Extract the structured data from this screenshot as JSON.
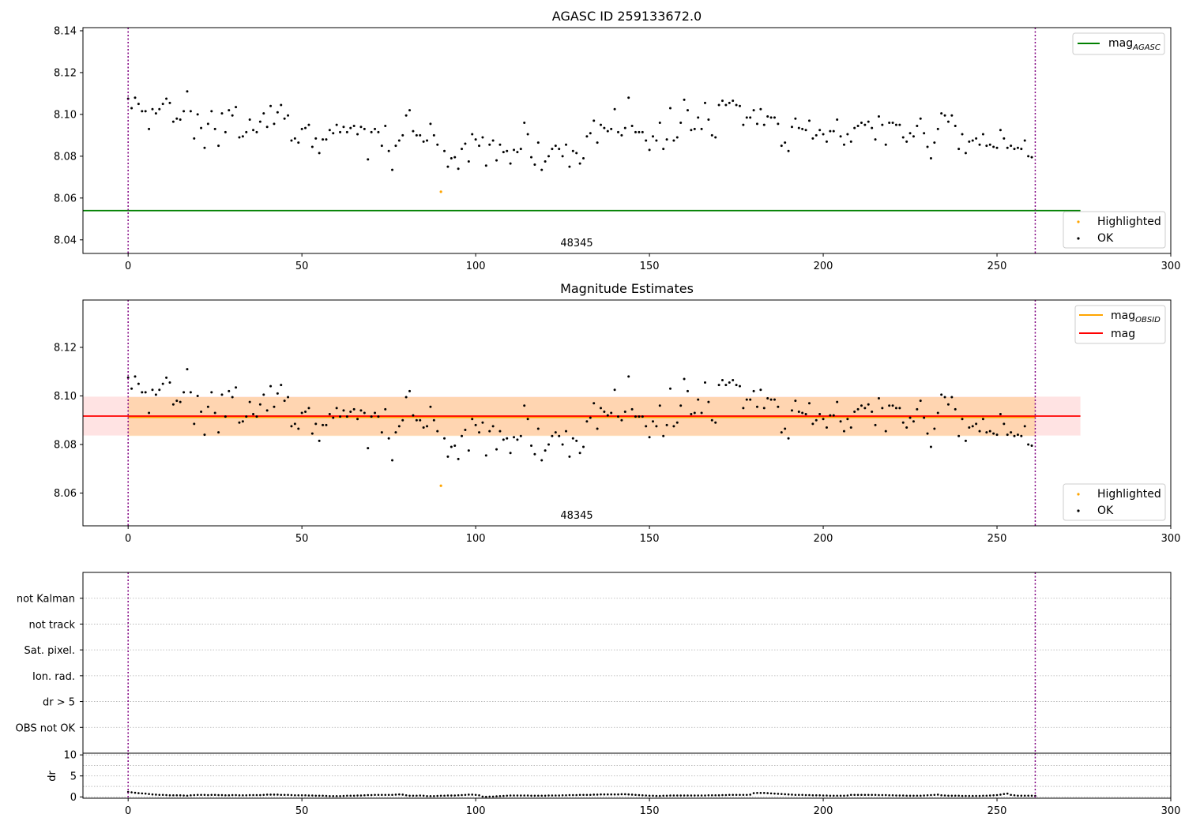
{
  "chart_data": [
    {
      "type": "scatter",
      "title": "AGASC ID 259133672.0",
      "xlabel": "",
      "ylabel": "",
      "xlim": [
        -13,
        300
      ],
      "ylim": [
        8.0335,
        8.1415
      ],
      "x_ticks": [
        "0",
        "50",
        "100",
        "150",
        "200",
        "250",
        "300"
      ],
      "y_ticks": [
        "8.04",
        "8.06",
        "8.08",
        "8.10",
        "8.12",
        "8.14"
      ],
      "vlines": [
        0,
        261
      ],
      "obs_label": "48345",
      "agasc_mag": 8.054,
      "hline_x_range": [
        -13,
        274
      ],
      "highlighted_point": {
        "x": 90,
        "y": 8.063
      },
      "legend_top": [
        {
          "label": "mag",
          "sub": "AGASC",
          "color": "#008000"
        }
      ],
      "legend_bottom": [
        {
          "label": "Highlighted",
          "color": "#ffa500"
        },
        {
          "label": "OK",
          "color": "#000000"
        }
      ],
      "series_name": "OK"
    },
    {
      "type": "scatter",
      "title": "Magnitude Estimates",
      "xlabel": "",
      "ylabel": "",
      "xlim": [
        -13,
        300
      ],
      "ylim": [
        8.0465,
        8.1395
      ],
      "x_ticks": [
        "0",
        "50",
        "100",
        "150",
        "200",
        "250",
        "300"
      ],
      "y_ticks": [
        "8.06",
        "8.08",
        "8.10",
        "8.12"
      ],
      "vlines": [
        0,
        261
      ],
      "obs_label": "48345",
      "mag": 8.0917,
      "mag_obsid": 8.0912,
      "band_mag": [
        8.0837,
        8.0997
      ],
      "band_obsid": [
        8.0835,
        8.0995
      ],
      "band_mag_x": [
        -13,
        274
      ],
      "band_obsid_x": [
        0,
        261
      ],
      "legend_top": [
        {
          "label": "mag",
          "sub": "OBSID",
          "color": "#ffa500"
        },
        {
          "label": "mag",
          "sub": "",
          "color": "#ff0000"
        }
      ],
      "legend_bottom": [
        {
          "label": "Highlighted",
          "color": "#ffa500"
        },
        {
          "label": "OK",
          "color": "#000000"
        }
      ],
      "series_name": "OK"
    },
    {
      "type": "scatter",
      "title": "",
      "categories": [
        "not Kalman",
        "not track",
        "Sat. pixel.",
        "Ion. rad.",
        "dr > 5",
        "OBS not OK"
      ],
      "flag_counts": [
        0,
        0,
        0,
        0,
        0,
        0
      ],
      "xlim": [
        -13,
        300
      ],
      "vlines": [
        0,
        261
      ]
    },
    {
      "type": "scatter",
      "title": "",
      "ylabel": "dr",
      "xlim": [
        -13,
        300
      ],
      "ylim": [
        -0.3,
        10.4
      ],
      "x_ticks": [
        "0",
        "50",
        "100",
        "150",
        "200",
        "250",
        "300"
      ],
      "y_ticks": [
        "0",
        "5",
        "10"
      ],
      "vlines": [
        0,
        261
      ],
      "dr": [
        1.2,
        1.1,
        1.0,
        0.9,
        0.85,
        0.8,
        0.7,
        0.6,
        0.55,
        0.5,
        0.5,
        0.45,
        0.4,
        0.4,
        0.4,
        0.4,
        0.35,
        0.3,
        0.4,
        0.45,
        0.5,
        0.5,
        0.5,
        0.45,
        0.5,
        0.5,
        0.45,
        0.45,
        0.4,
        0.4,
        0.45,
        0.45,
        0.4,
        0.4,
        0.4,
        0.45,
        0.45,
        0.45,
        0.45,
        0.5,
        0.55,
        0.55,
        0.55,
        0.55,
        0.5,
        0.5,
        0.5,
        0.45,
        0.4,
        0.4,
        0.4,
        0.4,
        0.35,
        0.35,
        0.3,
        0.3,
        0.3,
        0.25,
        0.2,
        0.2,
        0.2,
        0.2,
        0.25,
        0.3,
        0.3,
        0.3,
        0.35,
        0.35,
        0.4,
        0.45,
        0.45,
        0.5,
        0.5,
        0.5,
        0.5,
        0.5,
        0.5,
        0.55,
        0.6,
        0.55,
        0.4,
        0.3,
        0.3,
        0.3,
        0.35,
        0.3,
        0.2,
        0.2,
        0.2,
        0.25,
        0.3,
        0.3,
        0.35,
        0.35,
        0.35,
        0.4,
        0.45,
        0.5,
        0.55,
        0.55,
        0.5,
        0.4,
        0.1,
        0.05,
        0.1,
        0.1,
        0.15,
        0.2,
        0.25,
        0.3,
        0.35,
        0.35,
        0.35,
        0.35,
        0.35,
        0.35,
        0.3,
        0.3,
        0.3,
        0.3,
        0.3,
        0.35,
        0.35,
        0.35,
        0.35,
        0.4,
        0.4,
        0.45,
        0.45,
        0.45,
        0.5,
        0.5,
        0.5,
        0.5,
        0.55,
        0.55,
        0.6,
        0.6,
        0.6,
        0.6,
        0.6,
        0.6,
        0.65,
        0.65,
        0.6,
        0.55,
        0.5,
        0.45,
        0.4,
        0.35,
        0.3,
        0.3,
        0.25,
        0.25,
        0.3,
        0.3,
        0.35,
        0.35,
        0.35,
        0.35,
        0.35,
        0.35,
        0.35,
        0.35,
        0.35,
        0.35,
        0.35,
        0.4,
        0.4,
        0.4,
        0.4,
        0.45,
        0.45,
        0.5,
        0.5,
        0.5,
        0.5,
        0.5,
        0.5,
        0.55,
        0.9,
        0.95,
        0.95,
        0.95,
        0.9,
        0.85,
        0.8,
        0.75,
        0.7,
        0.65,
        0.6,
        0.55,
        0.5,
        0.5,
        0.5,
        0.45,
        0.45,
        0.4,
        0.4,
        0.4,
        0.35,
        0.35,
        0.3,
        0.3,
        0.3,
        0.3,
        0.3,
        0.35,
        0.5,
        0.5,
        0.5,
        0.5,
        0.5,
        0.5,
        0.5,
        0.5,
        0.45,
        0.45,
        0.45,
        0.4,
        0.4,
        0.35,
        0.35,
        0.35,
        0.3,
        0.3,
        0.3,
        0.3,
        0.3,
        0.35,
        0.4,
        0.45,
        0.5,
        0.55,
        0.4,
        0.35,
        0.3,
        0.3,
        0.3,
        0.3,
        0.25,
        0.25,
        0.25,
        0.25,
        0.25,
        0.25,
        0.3,
        0.3,
        0.35,
        0.4,
        0.45,
        0.55,
        0.7,
        0.8,
        0.5,
        0.4,
        0.3,
        0.3,
        0.3,
        0.3,
        0.3,
        0.25
      ]
    }
  ],
  "ok_mag": {
    "x_start": 0,
    "y": [
      8.1075,
      8.103,
      8.108,
      8.105,
      8.1015,
      8.1015,
      8.093,
      8.1025,
      8.1005,
      8.1025,
      8.105,
      8.1075,
      8.1055,
      8.0965,
      8.098,
      8.0975,
      8.1015,
      8.111,
      8.1015,
      8.0885,
      8.1,
      8.0935,
      8.084,
      8.0955,
      8.1015,
      8.093,
      8.085,
      8.1005,
      8.0915,
      8.102,
      8.0995,
      8.1035,
      8.089,
      8.0895,
      8.0915,
      8.0975,
      8.0925,
      8.0915,
      8.0965,
      8.1005,
      8.094,
      8.104,
      8.0955,
      8.101,
      8.1045,
      8.098,
      8.0995,
      8.0875,
      8.0885,
      8.0865,
      8.093,
      8.0935,
      8.095,
      8.0845,
      8.0885,
      8.0815,
      8.088,
      8.088,
      8.0925,
      8.091,
      8.095,
      8.0915,
      8.094,
      8.0915,
      8.0935,
      8.0945,
      8.0905,
      8.094,
      8.093,
      8.0785,
      8.0915,
      8.093,
      8.0915,
      8.085,
      8.0945,
      8.0825,
      8.0735,
      8.085,
      8.0875,
      8.09,
      8.0995,
      8.102,
      8.092,
      8.09,
      8.09,
      8.087,
      8.0875,
      8.0955,
      8.09,
      8.0855,
      8.063,
      8.0825,
      8.075,
      8.079,
      8.0795,
      8.074,
      8.0835,
      8.086,
      8.0775,
      8.0905,
      8.088,
      8.085,
      8.089,
      8.0755,
      8.0855,
      8.0875,
      8.078,
      8.0855,
      8.082,
      8.0825,
      8.0765,
      8.083,
      8.082,
      8.0835,
      8.096,
      8.0905,
      8.0795,
      8.076,
      8.0865,
      8.0735,
      8.0775,
      8.08,
      8.0835,
      8.085,
      8.0835,
      8.08,
      8.0855,
      8.075,
      8.0825,
      8.0815,
      8.0765,
      8.079,
      8.0895,
      8.091,
      8.097,
      8.0865,
      8.095,
      8.0935,
      8.092,
      8.093,
      8.1025,
      8.0915,
      8.09,
      8.0935,
      8.108,
      8.0945,
      8.0915,
      8.0915,
      8.0915,
      8.0875,
      8.083,
      8.0895,
      8.0875,
      8.096,
      8.0835,
      8.088,
      8.103,
      8.0875,
      8.089,
      8.096,
      8.107,
      8.102,
      8.0925,
      8.093,
      8.0985,
      8.093,
      8.1055,
      8.0975,
      8.09,
      8.089,
      8.1045,
      8.1065,
      8.1045,
      8.1055,
      8.1065,
      8.1045,
      8.104,
      8.095,
      8.0985,
      8.0985,
      8.102,
      8.0955,
      8.1025,
      8.095,
      8.099,
      8.0985,
      8.0985,
      8.0955,
      8.085,
      8.0865,
      8.0825,
      8.094,
      8.098,
      8.0935,
      8.093,
      8.0925,
      8.097,
      8.0885,
      8.09,
      8.0925,
      8.0905,
      8.087,
      8.092,
      8.092,
      8.0975,
      8.0895,
      8.0855,
      8.0905,
      8.087,
      8.0935,
      8.0945,
      8.096,
      8.095,
      8.0965,
      8.0935,
      8.088,
      8.099,
      8.095,
      8.0855,
      8.096,
      8.096,
      8.095,
      8.095,
      8.089,
      8.087,
      8.091,
      8.0895,
      8.0945,
      8.098,
      8.091,
      8.0845,
      8.079,
      8.0865,
      8.093,
      8.1005,
      8.0995,
      8.0965,
      8.0995,
      8.0945,
      8.0835,
      8.0905,
      8.0815,
      8.087,
      8.0875,
      8.0885,
      8.0855,
      8.0905,
      8.085,
      8.0855,
      8.0845,
      8.084,
      8.0925,
      8.0885,
      8.084,
      8.085,
      8.0835,
      8.084,
      8.0835,
      8.0875,
      8.08,
      8.0795
    ]
  },
  "colors": {
    "ok": "#000000",
    "highlighted": "#ffa500",
    "agasc_line": "#008000",
    "mag_line": "#ff0000",
    "mag_obsid_line": "#ffa500",
    "band_mag": "#ffc0c0",
    "band_obsid": "#ffa500",
    "vline": "#800080",
    "grid": "#b0b0b0"
  }
}
